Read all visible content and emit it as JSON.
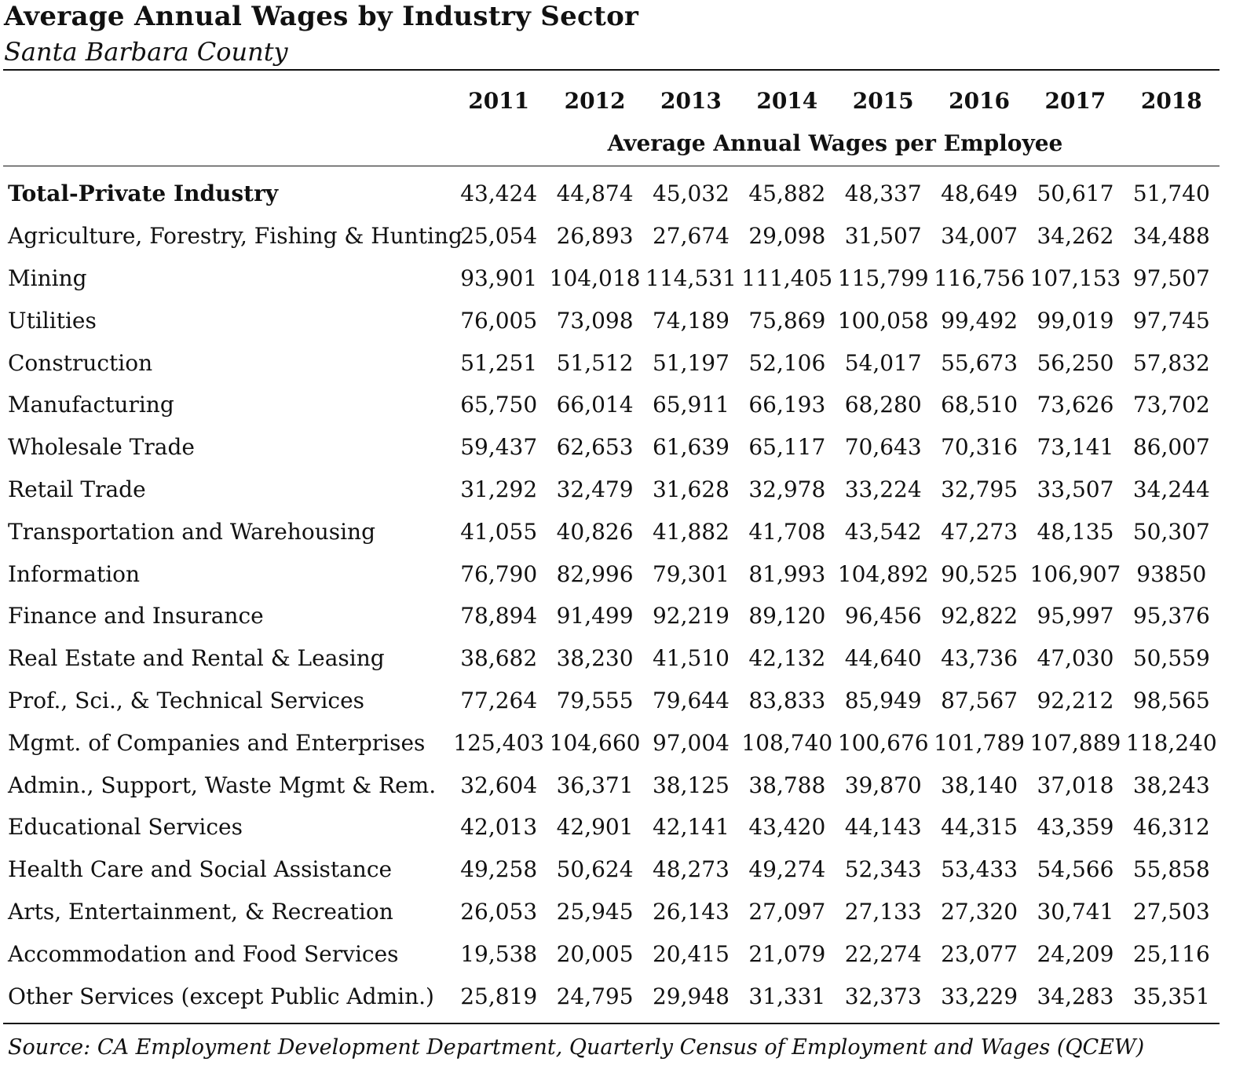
{
  "title": "Average Annual Wages by Industry Sector",
  "subtitle": "Santa Barbara County",
  "table": {
    "years": [
      "2011",
      "2012",
      "2013",
      "2014",
      "2015",
      "2016",
      "2017",
      "2018"
    ],
    "group_header": "Average Annual Wages per Employee",
    "rows": [
      {
        "label": "Total-Private Industry",
        "bold": true,
        "values": [
          "43,424",
          "44,874",
          "45,032",
          "45,882",
          "48,337",
          "48,649",
          "50,617",
          "51,740"
        ]
      },
      {
        "label": "Agriculture, Forestry, Fishing & Hunting",
        "values": [
          "25,054",
          "26,893",
          "27,674",
          "29,098",
          "31,507",
          "34,007",
          "34,262",
          "34,488"
        ]
      },
      {
        "label": "Mining",
        "values": [
          "93,901",
          "104,018",
          "114,531",
          "111,405",
          "115,799",
          "116,756",
          "107,153",
          "97,507"
        ]
      },
      {
        "label": "Utilities",
        "values": [
          "76,005",
          "73,098",
          "74,189",
          "75,869",
          "100,058",
          "99,492",
          "99,019",
          "97,745"
        ]
      },
      {
        "label": "Construction",
        "values": [
          "51,251",
          "51,512",
          "51,197",
          "52,106",
          "54,017",
          "55,673",
          "56,250",
          "57,832"
        ]
      },
      {
        "label": "Manufacturing",
        "values": [
          "65,750",
          "66,014",
          "65,911",
          "66,193",
          "68,280",
          "68,510",
          "73,626",
          "73,702"
        ]
      },
      {
        "label": "Wholesale Trade",
        "values": [
          "59,437",
          "62,653",
          "61,639",
          "65,117",
          "70,643",
          "70,316",
          "73,141",
          "86,007"
        ]
      },
      {
        "label": "Retail Trade",
        "values": [
          "31,292",
          "32,479",
          "31,628",
          "32,978",
          "33,224",
          "32,795",
          "33,507",
          "34,244"
        ]
      },
      {
        "label": "Transportation and Warehousing",
        "values": [
          "41,055",
          "40,826",
          "41,882",
          "41,708",
          "43,542",
          "47,273",
          "48,135",
          "50,307"
        ]
      },
      {
        "label": "Information",
        "values": [
          "76,790",
          "82,996",
          "79,301",
          "81,993",
          "104,892",
          "90,525",
          "106,907",
          "93850"
        ]
      },
      {
        "label": "Finance and Insurance",
        "values": [
          "78,894",
          "91,499",
          "92,219",
          "89,120",
          "96,456",
          "92,822",
          "95,997",
          "95,376"
        ]
      },
      {
        "label": "Real Estate and Rental & Leasing",
        "values": [
          "38,682",
          "38,230",
          "41,510",
          "42,132",
          "44,640",
          "43,736",
          "47,030",
          "50,559"
        ]
      },
      {
        "label": "Prof., Sci., & Technical Services",
        "values": [
          "77,264",
          "79,555",
          "79,644",
          "83,833",
          "85,949",
          "87,567",
          "92,212",
          "98,565"
        ]
      },
      {
        "label": "Mgmt. of Companies and Enterprises",
        "values": [
          "125,403",
          "104,660",
          "97,004",
          "108,740",
          "100,676",
          "101,789",
          "107,889",
          "118,240"
        ]
      },
      {
        "label": "Admin., Support, Waste Mgmt & Rem.",
        "values": [
          "32,604",
          "36,371",
          "38,125",
          "38,788",
          "39,870",
          "38,140",
          "37,018",
          "38,243"
        ]
      },
      {
        "label": "Educational Services",
        "values": [
          "42,013",
          "42,901",
          "42,141",
          "43,420",
          "44,143",
          "44,315",
          "43,359",
          "46,312"
        ]
      },
      {
        "label": "Health Care and Social Assistance",
        "values": [
          "49,258",
          "50,624",
          "48,273",
          "49,274",
          "52,343",
          "53,433",
          "54,566",
          "55,858"
        ]
      },
      {
        "label": "Arts, Entertainment, & Recreation",
        "values": [
          "26,053",
          "25,945",
          "26,143",
          "27,097",
          "27,133",
          "27,320",
          "30,741",
          "27,503"
        ]
      },
      {
        "label": "Accommodation and Food Services",
        "values": [
          "19,538",
          "20,005",
          "20,415",
          "21,079",
          "22,274",
          "23,077",
          "24,209",
          "25,116"
        ]
      },
      {
        "label": "Other Services (except Public Admin.)",
        "values": [
          "25,819",
          "24,795",
          "29,948",
          "31,331",
          "32,373",
          "33,229",
          "34,283",
          "35,351"
        ]
      }
    ]
  },
  "source": "Source: CA Employment Development Department, Quarterly Census of Employment and Wages (QCEW)"
}
